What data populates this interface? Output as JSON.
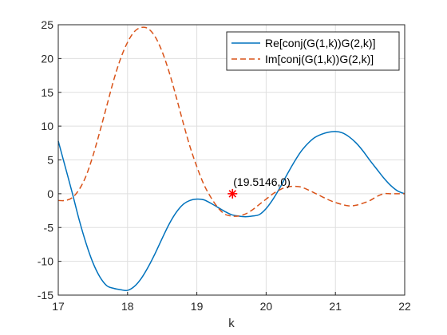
{
  "chart_data": {
    "type": "line",
    "title": "",
    "xlabel": "k",
    "ylabel": "",
    "xlim": [
      17,
      22
    ],
    "ylim": [
      -15,
      25
    ],
    "xticks": [
      17,
      18,
      19,
      20,
      21,
      22
    ],
    "yticks": [
      -15,
      -10,
      -5,
      0,
      5,
      10,
      15,
      20,
      25
    ],
    "grid": true,
    "legend_position": "top-right",
    "series": [
      {
        "name": "Re[conj(G(1,k))G(2,k)]",
        "color": "#0072BD",
        "style": "solid",
        "x": [
          17.0,
          17.1,
          17.2,
          17.3,
          17.4,
          17.5,
          17.6,
          17.7,
          17.8,
          17.9,
          18.0,
          18.1,
          18.2,
          18.3,
          18.4,
          18.5,
          18.6,
          18.7,
          18.8,
          18.9,
          19.0,
          19.1,
          19.2,
          19.3,
          19.4,
          19.5,
          19.6,
          19.7,
          19.8,
          19.9,
          20.0,
          20.1,
          20.2,
          20.3,
          20.4,
          20.5,
          20.6,
          20.7,
          20.8,
          20.9,
          21.0,
          21.1,
          21.2,
          21.3,
          21.4,
          21.5,
          21.6,
          21.7,
          21.8,
          21.9,
          22.0
        ],
        "y": [
          7.8,
          4.0,
          0.2,
          -3.8,
          -7.3,
          -10.2,
          -12.3,
          -13.6,
          -14.0,
          -14.2,
          -14.3,
          -13.7,
          -12.5,
          -10.8,
          -8.8,
          -6.6,
          -4.5,
          -2.8,
          -1.6,
          -1.0,
          -0.8,
          -0.9,
          -1.4,
          -2.0,
          -2.6,
          -3.1,
          -3.3,
          -3.4,
          -3.3,
          -3.1,
          -2.2,
          -0.8,
          0.9,
          2.8,
          4.6,
          6.2,
          7.4,
          8.3,
          8.8,
          9.1,
          9.2,
          9.0,
          8.4,
          7.5,
          6.3,
          4.9,
          3.6,
          2.3,
          1.2,
          0.4,
          0.0
        ]
      },
      {
        "name": "Im[conj(G(1,k))G(2,k)]",
        "color": "#D95319",
        "style": "dashed",
        "x": [
          17.0,
          17.1,
          17.2,
          17.3,
          17.4,
          17.5,
          17.6,
          17.7,
          17.8,
          17.9,
          18.0,
          18.1,
          18.2,
          18.3,
          18.4,
          18.5,
          18.6,
          18.7,
          18.8,
          18.9,
          19.0,
          19.1,
          19.2,
          19.3,
          19.4,
          19.5,
          19.6,
          19.7,
          19.8,
          19.9,
          20.0,
          20.1,
          20.2,
          20.3,
          20.4,
          20.5,
          20.6,
          20.7,
          20.8,
          20.9,
          21.0,
          21.1,
          21.2,
          21.3,
          21.4,
          21.5,
          21.6,
          21.7,
          21.8,
          21.9,
          22.0
        ],
        "y": [
          -1.0,
          -1.0,
          -0.6,
          0.6,
          2.6,
          5.6,
          9.2,
          13.0,
          16.8,
          20.0,
          22.4,
          24.0,
          24.6,
          24.4,
          23.2,
          21.0,
          18.0,
          14.4,
          10.6,
          7.0,
          4.0,
          1.4,
          -0.5,
          -2.0,
          -3.0,
          -3.3,
          -3.3,
          -3.0,
          -2.4,
          -1.6,
          -0.8,
          0.0,
          0.6,
          1.0,
          1.1,
          1.0,
          0.6,
          0.1,
          -0.4,
          -0.9,
          -1.3,
          -1.6,
          -1.8,
          -1.7,
          -1.4,
          -1.0,
          -0.4,
          0.0,
          0.0,
          0.0,
          0.0
        ]
      }
    ],
    "annotation": {
      "label": "(19.5146,0)",
      "x": 19.5146,
      "y": 0,
      "marker": "asterisk",
      "color": "#FF0000"
    }
  }
}
